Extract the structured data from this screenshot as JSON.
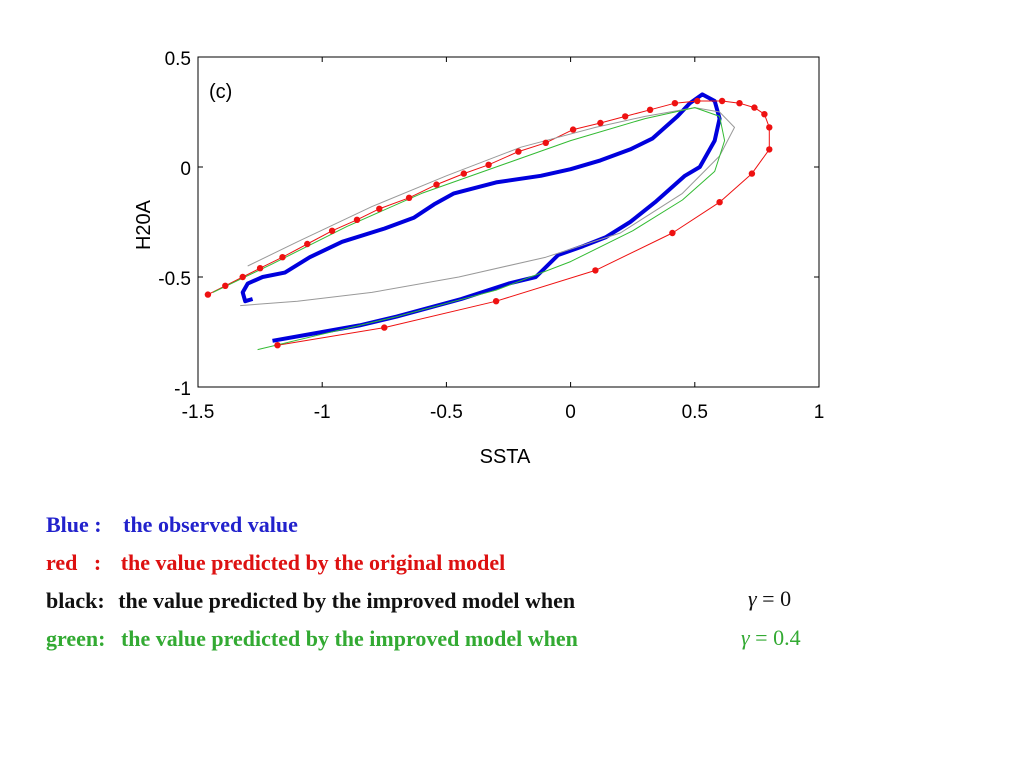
{
  "chart_data": {
    "type": "line",
    "panel_label": "(c)",
    "xlabel": "SSTA",
    "ylabel": "H20A",
    "xlim": [
      -1.5,
      1
    ],
    "ylim": [
      -1,
      0.5
    ],
    "xticks": [
      "-1.5",
      "-1",
      "-0.5",
      "0",
      "0.5",
      "1"
    ],
    "yticks": [
      "0.5",
      "0",
      "-0.5",
      "-1"
    ],
    "grid": false,
    "series": [
      {
        "color": "#0000dd",
        "marker": "none",
        "points": [
          [
            -1.28,
            -0.6
          ],
          [
            -1.31,
            -0.61
          ],
          [
            -1.32,
            -0.57
          ],
          [
            -1.3,
            -0.53
          ],
          [
            -1.24,
            -0.5
          ],
          [
            -1.15,
            -0.48
          ],
          [
            -1.05,
            -0.41
          ],
          [
            -0.92,
            -0.34
          ],
          [
            -0.75,
            -0.28
          ],
          [
            -0.63,
            -0.23
          ],
          [
            -0.55,
            -0.17
          ],
          [
            -0.47,
            -0.12
          ],
          [
            -0.3,
            -0.07
          ],
          [
            -0.12,
            -0.04
          ],
          [
            0.0,
            -0.01
          ],
          [
            0.12,
            0.03
          ],
          [
            0.24,
            0.08
          ],
          [
            0.33,
            0.13
          ],
          [
            0.38,
            0.18
          ],
          [
            0.43,
            0.23
          ],
          [
            0.48,
            0.29
          ],
          [
            0.53,
            0.33
          ],
          [
            0.58,
            0.3
          ],
          [
            0.6,
            0.22
          ],
          [
            0.58,
            0.12
          ],
          [
            0.52,
            0.0
          ],
          [
            0.46,
            -0.04
          ],
          [
            0.34,
            -0.16
          ],
          [
            0.24,
            -0.25
          ],
          [
            0.14,
            -0.32
          ],
          [
            0.05,
            -0.36
          ],
          [
            -0.05,
            -0.4
          ],
          [
            -0.14,
            -0.5
          ],
          [
            -0.25,
            -0.53
          ],
          [
            -0.44,
            -0.6
          ],
          [
            -0.7,
            -0.68
          ],
          [
            -0.85,
            -0.72
          ],
          [
            -1.0,
            -0.75
          ],
          [
            -1.2,
            -0.79
          ]
        ]
      },
      {
        "color": "#ee1111",
        "marker": "dot",
        "points": [
          [
            -1.46,
            -0.58
          ],
          [
            -1.39,
            -0.54
          ],
          [
            -1.32,
            -0.5
          ],
          [
            -1.25,
            -0.46
          ],
          [
            -1.16,
            -0.41
          ],
          [
            -1.06,
            -0.35
          ],
          [
            -0.96,
            -0.29
          ],
          [
            -0.86,
            -0.24
          ],
          [
            -0.77,
            -0.19
          ],
          [
            -0.65,
            -0.14
          ],
          [
            -0.54,
            -0.08
          ],
          [
            -0.43,
            -0.03
          ],
          [
            -0.33,
            0.01
          ],
          [
            -0.21,
            0.07
          ],
          [
            -0.1,
            0.11
          ],
          [
            0.01,
            0.17
          ],
          [
            0.12,
            0.2
          ],
          [
            0.22,
            0.23
          ],
          [
            0.32,
            0.26
          ],
          [
            0.42,
            0.29
          ],
          [
            0.51,
            0.3
          ],
          [
            0.61,
            0.3
          ],
          [
            0.68,
            0.29
          ],
          [
            0.74,
            0.27
          ],
          [
            0.78,
            0.24
          ],
          [
            0.8,
            0.18
          ],
          [
            0.8,
            0.08
          ],
          [
            0.73,
            -0.03
          ],
          [
            0.6,
            -0.16
          ],
          [
            0.41,
            -0.3
          ],
          [
            0.1,
            -0.47
          ],
          [
            -0.3,
            -0.61
          ],
          [
            -0.75,
            -0.73
          ],
          [
            -1.18,
            -0.81
          ]
        ]
      },
      {
        "color": "#999999",
        "marker": "none",
        "points": [
          [
            -1.33,
            -0.63
          ],
          [
            -1.1,
            -0.61
          ],
          [
            -0.8,
            -0.57
          ],
          [
            -0.45,
            -0.5
          ],
          [
            -0.1,
            -0.41
          ],
          [
            0.2,
            -0.3
          ],
          [
            0.45,
            -0.12
          ],
          [
            0.6,
            0.05
          ],
          [
            0.66,
            0.18
          ],
          [
            0.6,
            0.25
          ],
          [
            0.5,
            0.27
          ],
          [
            0.3,
            0.23
          ],
          [
            0.1,
            0.18
          ],
          [
            -0.2,
            0.09
          ],
          [
            -0.5,
            -0.04
          ],
          [
            -0.8,
            -0.18
          ],
          [
            -1.1,
            -0.34
          ],
          [
            -1.3,
            -0.45
          ]
        ]
      },
      {
        "color": "#33bb33",
        "marker": "none",
        "points": [
          [
            -1.44,
            -0.57
          ],
          [
            -1.2,
            -0.44
          ],
          [
            -0.9,
            -0.27
          ],
          [
            -0.6,
            -0.12
          ],
          [
            -0.3,
            0.0
          ],
          [
            0.0,
            0.12
          ],
          [
            0.3,
            0.22
          ],
          [
            0.5,
            0.27
          ],
          [
            0.6,
            0.23
          ],
          [
            0.62,
            0.12
          ],
          [
            0.58,
            -0.02
          ],
          [
            0.45,
            -0.15
          ],
          [
            0.25,
            -0.29
          ],
          [
            0.0,
            -0.43
          ],
          [
            -0.3,
            -0.56
          ],
          [
            -0.7,
            -0.68
          ],
          [
            -1.0,
            -0.76
          ],
          [
            -1.26,
            -0.83
          ]
        ]
      }
    ]
  },
  "legend": [
    {
      "key": "Blue :",
      "desc": "the observed value",
      "color": "#2222cc"
    },
    {
      "key": "red   :",
      "desc": "the value predicted by the original model",
      "color": "#dd1111"
    },
    {
      "key": "black:",
      "desc": "the value predicted by the improved model when",
      "color": "#111111",
      "gamma": "= 0"
    },
    {
      "key": "green:",
      "desc": "the value predicted by the improved model when",
      "color": "#33aa33",
      "gamma": "= 0.4"
    }
  ],
  "gamma_symbol": "γ"
}
